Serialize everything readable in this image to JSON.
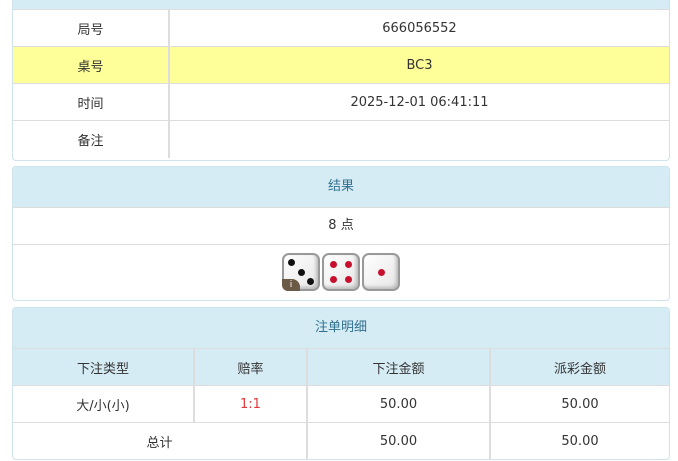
{
  "info": {
    "rows": [
      {
        "label": "局号",
        "value": "666056552"
      },
      {
        "label": "桌号",
        "value": "BC3"
      },
      {
        "label": "时间",
        "value": "2025-12-01 06:41:11"
      },
      {
        "label": "备注",
        "value": ""
      }
    ]
  },
  "result": {
    "title": "结果",
    "points_text": "8 点",
    "dice": [
      3,
      4,
      1
    ],
    "info_badge": "i"
  },
  "bets": {
    "title": "注单明细",
    "headers": [
      "下注类型",
      "赔率",
      "下注金额",
      "派彩金额"
    ],
    "rows": [
      {
        "type": "大/小(小)",
        "odds": "1:1",
        "amount": "50.00",
        "payout": "50.00"
      }
    ],
    "total": {
      "label": "总计",
      "amount": "50.00",
      "payout": "50.00"
    },
    "odds_color": "#e4393c"
  }
}
